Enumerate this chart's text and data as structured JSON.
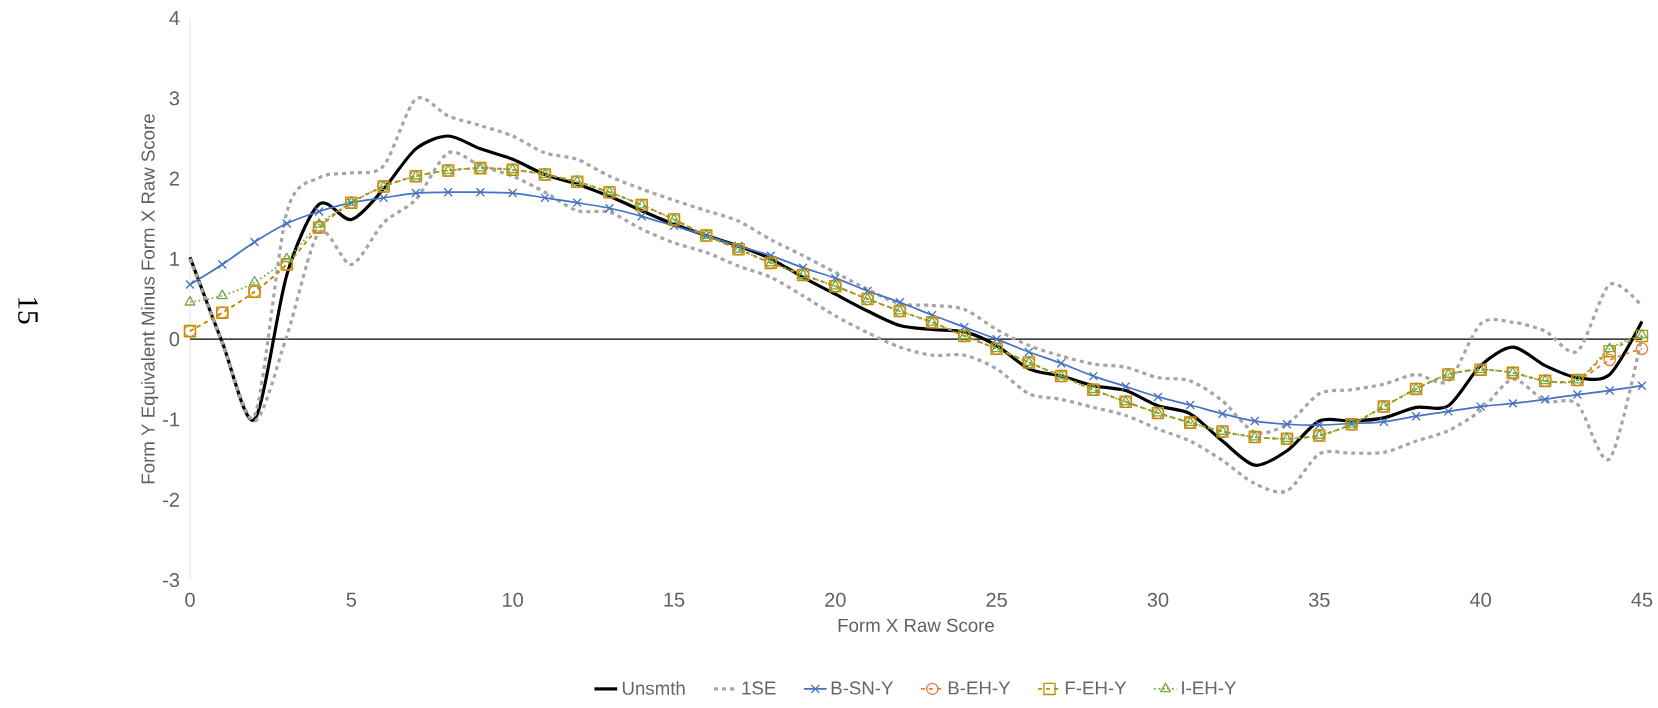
{
  "chart_data": {
    "type": "line",
    "xlabel": "Form X Raw Score",
    "ylabel": "Form Y Equivalent Minus Form X Raw Score",
    "annotations": [
      "15"
    ],
    "x": [
      0,
      1,
      2,
      3,
      4,
      5,
      6,
      7,
      8,
      9,
      10,
      11,
      12,
      13,
      14,
      15,
      16,
      17,
      18,
      19,
      20,
      21,
      22,
      23,
      24,
      25,
      26,
      27,
      28,
      29,
      30,
      31,
      32,
      33,
      34,
      35,
      36,
      37,
      38,
      39,
      40,
      41,
      42,
      43,
      44,
      45
    ],
    "xlim": [
      0,
      45
    ],
    "xticks": [
      0,
      5,
      10,
      15,
      20,
      25,
      30,
      35,
      40,
      45
    ],
    "ylim": [
      -3,
      4
    ],
    "yticks": [
      -3,
      -2,
      -1,
      0,
      1,
      2,
      3,
      4
    ],
    "grid": false,
    "legend": "bottom",
    "ref_lines": [
      {
        "axis": "y",
        "value": 0,
        "color": "#000000"
      }
    ],
    "series": [
      {
        "name": "Unsmth",
        "color": "#000000",
        "marker": "none",
        "line_style": "solid",
        "values": [
          1.02,
          -0.04,
          -1.0,
          0.8,
          1.68,
          1.49,
          1.87,
          2.37,
          2.53,
          2.37,
          2.24,
          2.05,
          1.93,
          1.78,
          1.6,
          1.43,
          1.29,
          1.16,
          1.0,
          0.77,
          0.56,
          0.35,
          0.17,
          0.12,
          0.09,
          -0.08,
          -0.37,
          -0.46,
          -0.58,
          -0.64,
          -0.83,
          -0.93,
          -1.27,
          -1.57,
          -1.39,
          -1.02,
          -1.02,
          -0.98,
          -0.85,
          -0.83,
          -0.33,
          -0.1,
          -0.33,
          -0.48,
          -0.44,
          0.22
        ]
      },
      {
        "name": "1SE",
        "color": "#a5a5a5",
        "marker": "none",
        "line_style": "dashed",
        "values": [
          1.0,
          -0.04,
          -0.95,
          1.58,
          2.01,
          2.07,
          2.16,
          2.99,
          2.78,
          2.66,
          2.53,
          2.32,
          2.24,
          2.03,
          1.87,
          1.73,
          1.6,
          1.47,
          1.24,
          1.04,
          0.83,
          0.62,
          0.44,
          0.42,
          0.37,
          0.12,
          -0.08,
          -0.21,
          -0.31,
          -0.35,
          -0.48,
          -0.52,
          -0.77,
          -1.16,
          -1.06,
          -0.68,
          -0.63,
          -0.56,
          -0.44,
          -0.52,
          0.19,
          0.21,
          0.1,
          -0.15,
          0.68,
          0.41
        ]
      },
      {
        "color": "#a5a5a5",
        "marker": "none",
        "line_style": "dashed",
        "values": [
          1.0,
          -0.05,
          -1.02,
          0.04,
          1.33,
          0.93,
          1.45,
          1.74,
          2.32,
          2.16,
          2.03,
          1.83,
          1.6,
          1.58,
          1.37,
          1.2,
          1.08,
          0.91,
          0.77,
          0.54,
          0.29,
          0.08,
          -0.1,
          -0.2,
          -0.2,
          -0.37,
          -0.68,
          -0.75,
          -0.85,
          -0.95,
          -1.12,
          -1.27,
          -1.51,
          -1.8,
          -1.89,
          -1.43,
          -1.42,
          -1.41,
          -1.27,
          -1.14,
          -0.89,
          -0.5,
          -0.77,
          -0.81,
          -1.49,
          0.04
        ]
      },
      {
        "name": "B-SN-Y",
        "color": "#4472c4",
        "marker": "cross",
        "line_style": "solid",
        "values": [
          0.68,
          0.93,
          1.21,
          1.44,
          1.59,
          1.7,
          1.76,
          1.82,
          1.83,
          1.83,
          1.82,
          1.76,
          1.7,
          1.63,
          1.53,
          1.41,
          1.29,
          1.16,
          1.04,
          0.89,
          0.76,
          0.6,
          0.46,
          0.3,
          0.15,
          0.0,
          -0.16,
          -0.3,
          -0.46,
          -0.59,
          -0.72,
          -0.82,
          -0.93,
          -1.02,
          -1.06,
          -1.07,
          -1.05,
          -1.03,
          -0.96,
          -0.9,
          -0.84,
          -0.8,
          -0.75,
          -0.69,
          -0.64,
          -0.58
        ]
      },
      {
        "name": "B-EH-Y",
        "color": "#ed7d31",
        "marker": "circle",
        "line_style": "dashed",
        "values": [
          0.1,
          0.33,
          0.59,
          0.93,
          1.39,
          1.7,
          1.9,
          2.03,
          2.1,
          2.13,
          2.11,
          2.05,
          1.96,
          1.83,
          1.67,
          1.49,
          1.29,
          1.12,
          0.95,
          0.8,
          0.66,
          0.5,
          0.35,
          0.21,
          0.04,
          -0.12,
          -0.29,
          -0.46,
          -0.63,
          -0.78,
          -0.92,
          -1.04,
          -1.15,
          -1.22,
          -1.24,
          -1.2,
          -1.06,
          -0.84,
          -0.62,
          -0.44,
          -0.38,
          -0.42,
          -0.52,
          -0.51,
          -0.26,
          -0.12
        ]
      },
      {
        "name": "F-EH-Y",
        "color": "#bf9000",
        "marker": "square",
        "line_style": "dashed",
        "values": [
          0.1,
          0.33,
          0.59,
          0.93,
          1.39,
          1.7,
          1.9,
          2.03,
          2.1,
          2.13,
          2.11,
          2.05,
          1.96,
          1.83,
          1.67,
          1.49,
          1.29,
          1.12,
          0.95,
          0.8,
          0.66,
          0.5,
          0.35,
          0.21,
          0.04,
          -0.12,
          -0.29,
          -0.46,
          -0.63,
          -0.78,
          -0.92,
          -1.04,
          -1.15,
          -1.22,
          -1.24,
          -1.2,
          -1.06,
          -0.84,
          -0.62,
          -0.44,
          -0.38,
          -0.42,
          -0.52,
          -0.51,
          -0.15,
          0.04
        ]
      },
      {
        "name": "I-EH-Y",
        "color": "#70ad47",
        "marker": "triangle",
        "line_style": "dotted",
        "values": [
          0.46,
          0.54,
          0.71,
          1.0,
          1.43,
          1.7,
          1.9,
          2.03,
          2.1,
          2.13,
          2.11,
          2.05,
          1.96,
          1.83,
          1.67,
          1.49,
          1.29,
          1.12,
          0.95,
          0.8,
          0.66,
          0.5,
          0.35,
          0.21,
          0.04,
          -0.12,
          -0.29,
          -0.46,
          -0.63,
          -0.78,
          -0.92,
          -1.04,
          -1.15,
          -1.22,
          -1.24,
          -1.2,
          -1.06,
          -0.84,
          -0.62,
          -0.44,
          -0.38,
          -0.42,
          -0.52,
          -0.51,
          -0.12,
          0.05
        ]
      }
    ]
  }
}
